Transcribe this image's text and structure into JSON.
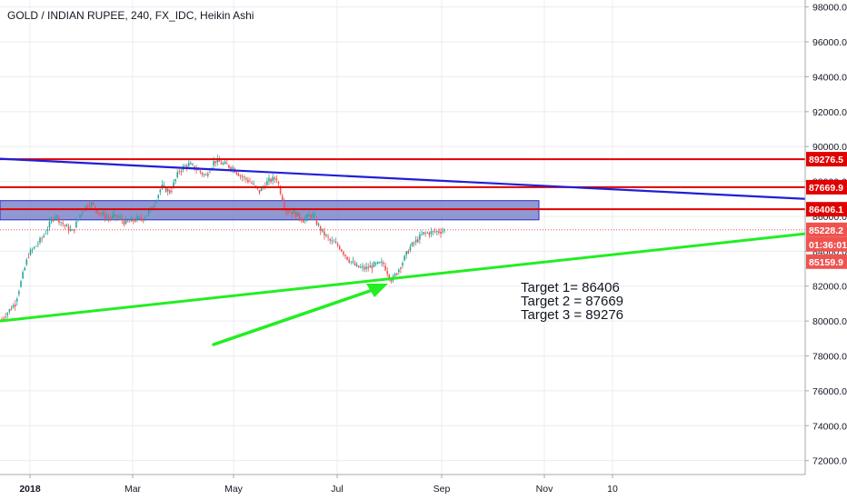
{
  "chart_data": {
    "type": "candlestick",
    "title": "GOLD / INDIAN RUPEE, 240, FX_IDC, Heikin Ashi",
    "y_axis": {
      "range": [
        71200,
        98400
      ],
      "ticks": [
        72000,
        74000,
        76000,
        78000,
        80000,
        82000,
        84000,
        86000,
        88000,
        90000,
        92000,
        94000,
        96000,
        98000
      ],
      "tick_labels": [
        "72000.0",
        "74000.0",
        "76000.0",
        "78000.0",
        "80000.0",
        "82000.0",
        "84000.0",
        "86000.0",
        "88000.0",
        "90000.0",
        "92000.0",
        "94000.0",
        "96000.0",
        "98000.0"
      ],
      "position": "right"
    },
    "x_axis": {
      "tick_labels": [
        "2018",
        "Mar",
        "May",
        "Jul",
        "Sep",
        "Nov",
        "10"
      ],
      "tick_bold": [
        true,
        false,
        false,
        false,
        false,
        false,
        false
      ]
    },
    "grid": true,
    "colors": {
      "up": "#26a69a",
      "down": "#ef5350",
      "grid": "#e9ecf0",
      "horizontal_levels": "#e00000",
      "resistance_trend": "#1f1fd6",
      "support_trend": "#22ee22",
      "zone_fill": "#7d87c9",
      "zone_border": "#2b2bc8"
    },
    "price_path": [
      [
        0,
        80100
      ],
      [
        0.03,
        81000
      ],
      [
        0.06,
        83800
      ],
      [
        0.09,
        84700
      ],
      [
        0.12,
        86100
      ],
      [
        0.14,
        85500
      ],
      [
        0.16,
        85100
      ],
      [
        0.18,
        86300
      ],
      [
        0.2,
        86800
      ],
      [
        0.22,
        86200
      ],
      [
        0.24,
        85900
      ],
      [
        0.26,
        86000
      ],
      [
        0.28,
        85600
      ],
      [
        0.3,
        85800
      ],
      [
        0.32,
        85900
      ],
      [
        0.34,
        86500
      ],
      [
        0.36,
        87700
      ],
      [
        0.38,
        87400
      ],
      [
        0.4,
        88600
      ],
      [
        0.42,
        89000
      ],
      [
        0.44,
        88700
      ],
      [
        0.46,
        88300
      ],
      [
        0.48,
        89200
      ],
      [
        0.5,
        89000
      ],
      [
        0.52,
        88800
      ],
      [
        0.54,
        88300
      ],
      [
        0.56,
        88000
      ],
      [
        0.58,
        87400
      ],
      [
        0.6,
        88000
      ],
      [
        0.62,
        88200
      ],
      [
        0.64,
        86400
      ],
      [
        0.66,
        86200
      ],
      [
        0.68,
        85800
      ],
      [
        0.7,
        86100
      ],
      [
        0.72,
        85200
      ],
      [
        0.74,
        84600
      ],
      [
        0.76,
        84300
      ],
      [
        0.78,
        83600
      ],
      [
        0.8,
        83100
      ],
      [
        0.82,
        83000
      ],
      [
        0.84,
        83200
      ],
      [
        0.86,
        83300
      ],
      [
        0.88,
        82300
      ],
      [
        0.9,
        83200
      ],
      [
        0.92,
        84200
      ],
      [
        0.95,
        85000
      ],
      [
        1,
        85200
      ]
    ],
    "horizontal_levels": [
      89276.5,
      87669.9,
      86406.1
    ],
    "level_labels": [
      "89276.5",
      "87669.9",
      "86406.1"
    ],
    "resistance_trendline": [
      [
        0,
        89300
      ],
      [
        1,
        87000
      ]
    ],
    "support_trendline": [
      [
        0,
        80000
      ],
      [
        1,
        85000
      ]
    ],
    "supply_zone": [
      85800,
      86900
    ],
    "last_price": 85228.2,
    "last_price_label": "85228.2",
    "countdown": "01:36:01",
    "bid_label": "85159.9",
    "annotations": [
      "Target 1= 86406",
      "Target 2 = 87669",
      "Target 3 = 89276"
    ]
  }
}
